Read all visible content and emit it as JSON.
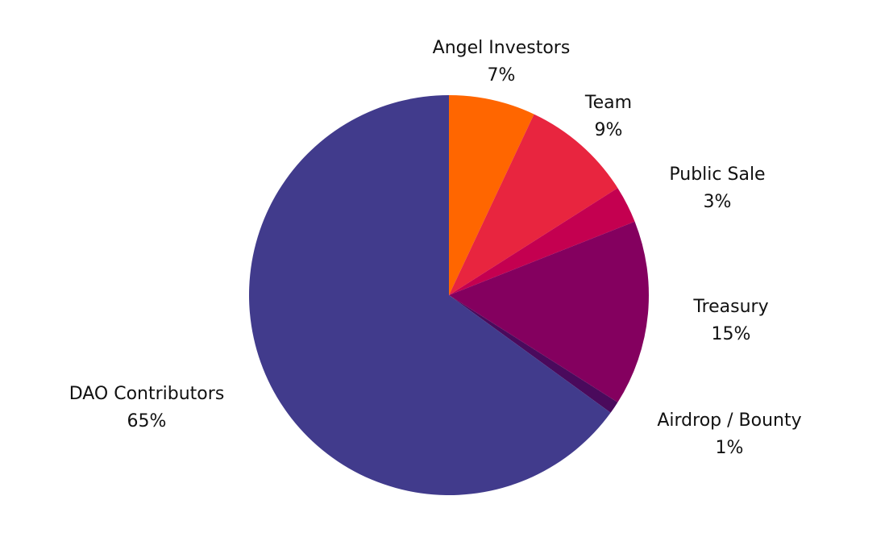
{
  "chart_data": {
    "type": "pie",
    "slices": [
      {
        "label": "Angel Investors",
        "value": 7,
        "display": "7%",
        "color": "#ff6600"
      },
      {
        "label": "Team",
        "value": 9,
        "display": "9%",
        "color": "#e8253f"
      },
      {
        "label": "Public Sale",
        "value": 3,
        "display": "3%",
        "color": "#c40050"
      },
      {
        "label": "Treasury",
        "value": 15,
        "display": "15%",
        "color": "#84005f"
      },
      {
        "label": "Airdrop / Bounty",
        "value": 1,
        "display": "1%",
        "color": "#4a0a5c"
      },
      {
        "label": "DAO Contributors",
        "value": 65,
        "display": "65%",
        "color": "#413b8c"
      }
    ],
    "start_angle": "12 o'clock",
    "direction": "clockwise",
    "legend": "none",
    "labels": "outside"
  }
}
